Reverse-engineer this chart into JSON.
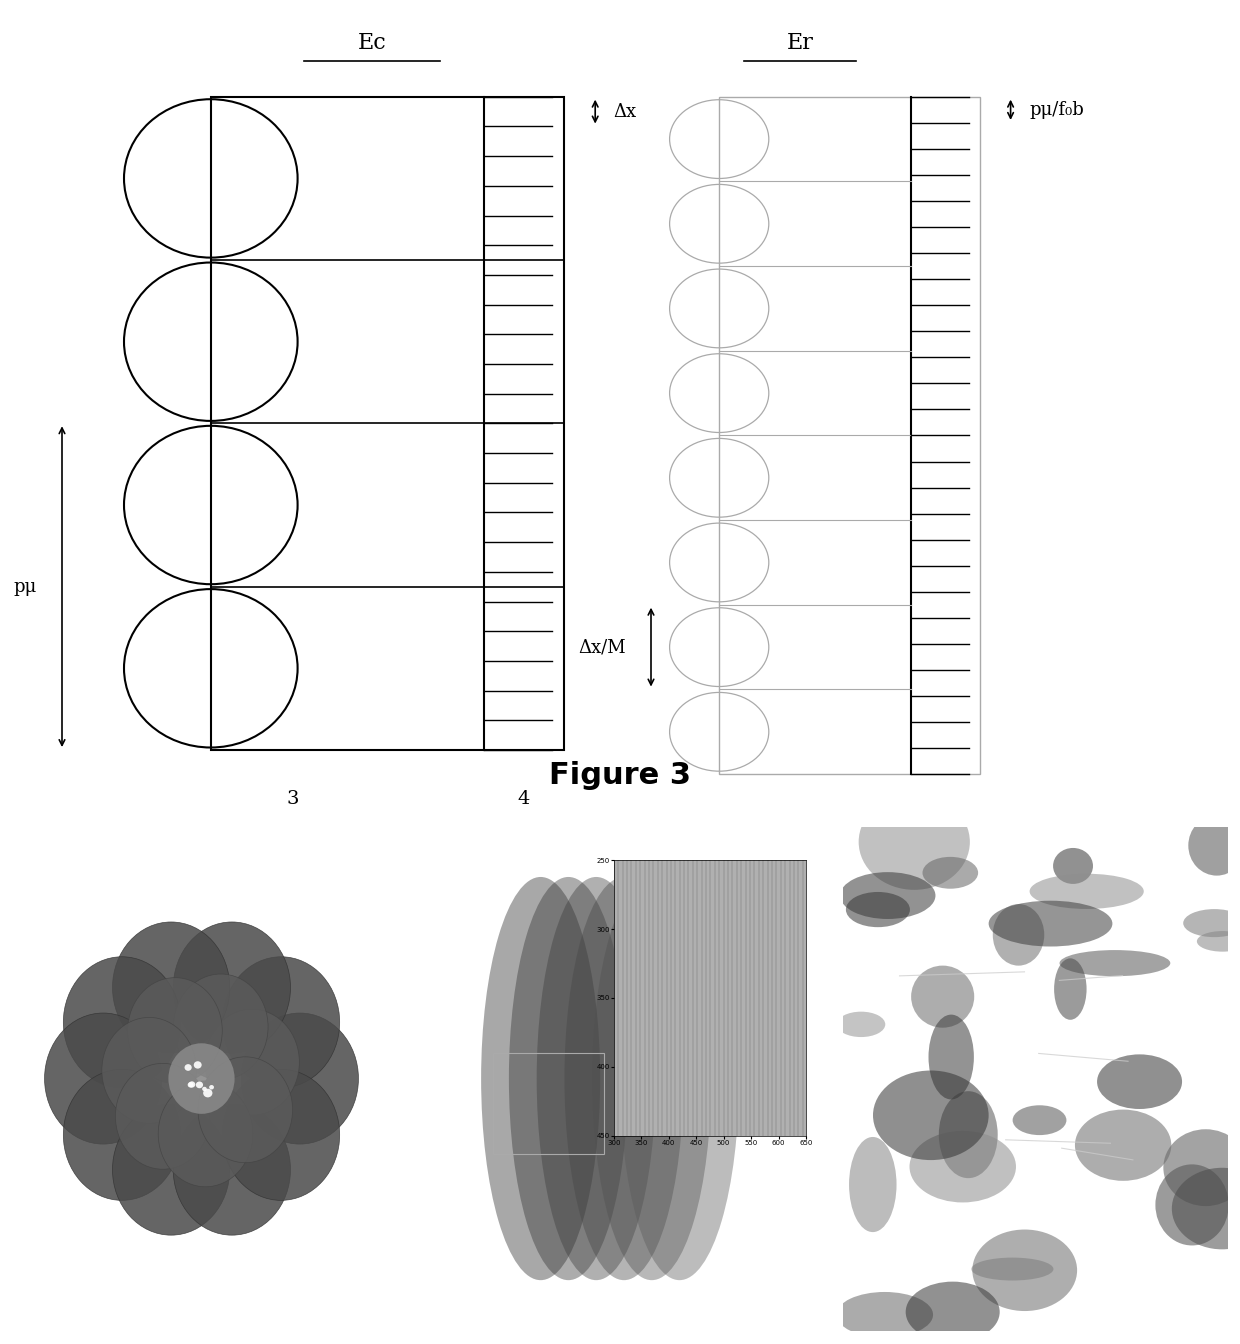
{
  "title": "Figure 3",
  "ec_label": "Ec",
  "er_label": "Er",
  "label_3": "3",
  "label_4": "4",
  "delta_x_label": "Δx",
  "delta_x_m_label": "Δx/M",
  "p_mu_label": "pμ",
  "p_mu_fob_label": "pμ/f₀b",
  "bg_color": "#ffffff",
  "line_color": "#000000",
  "light_gray": "#aaaaaa",
  "n_lenslets": 4,
  "n_ruler_ticks": 22,
  "n_cells_r": 8,
  "n_ticks_r": 26
}
